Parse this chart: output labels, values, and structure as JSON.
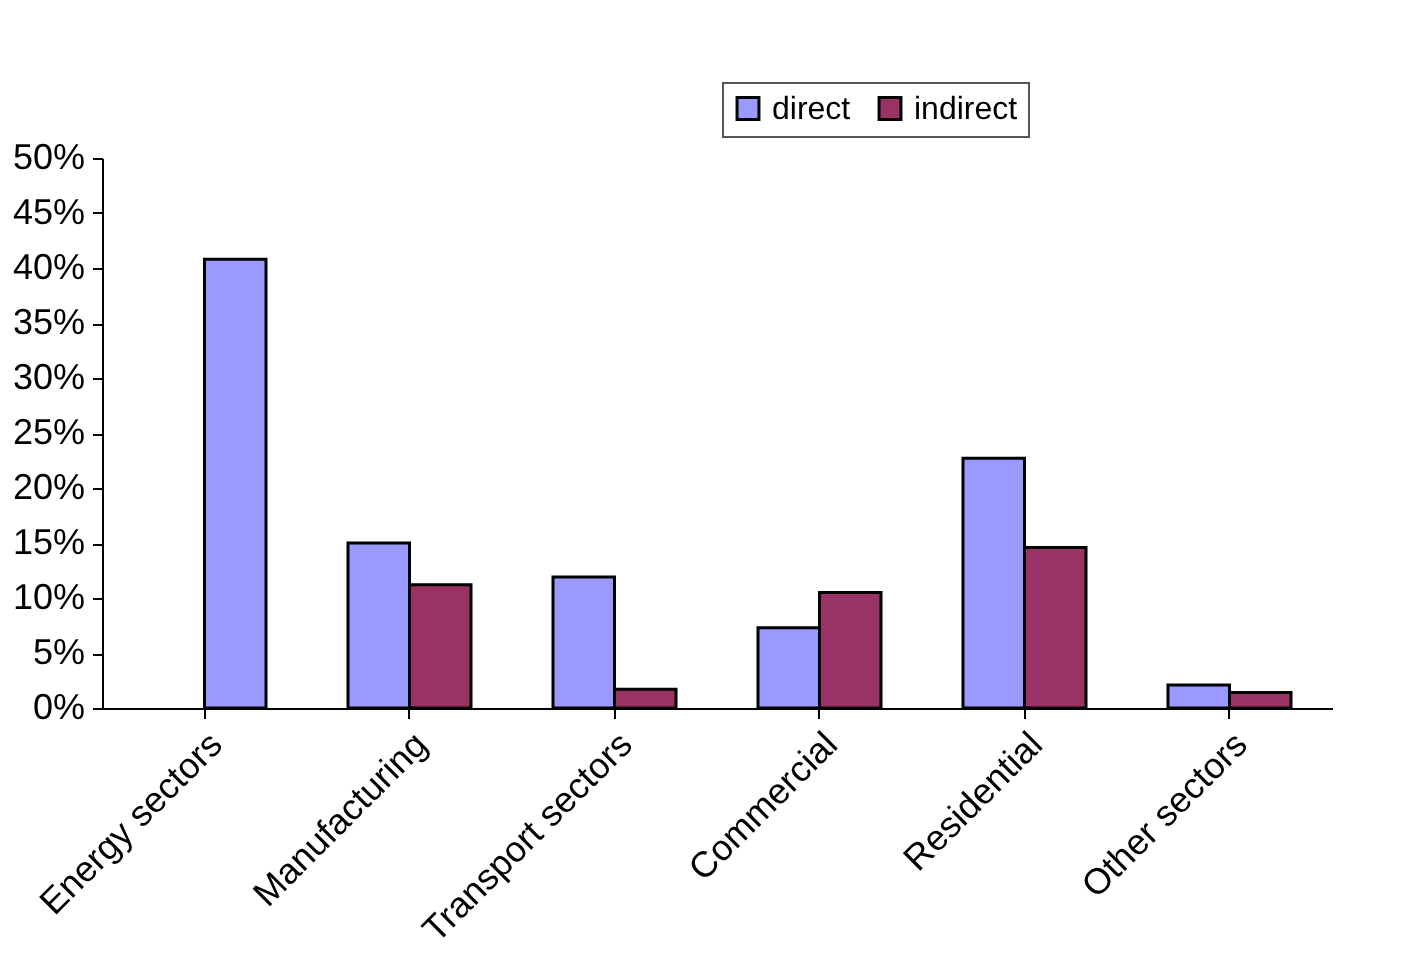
{
  "chart_data": {
    "type": "bar",
    "categories": [
      "Energy sectors",
      "Manufacturing",
      "Transport sectors",
      "Commercial",
      "Residential",
      "Other sectors"
    ],
    "series": [
      {
        "name": "direct",
        "color": "#9999ff",
        "values": [
          null,
          15.0,
          11.9,
          7.3,
          22.7,
          2.1
        ]
      },
      {
        "name": "indirect",
        "color": "#993366",
        "colors": [
          "#9999ff",
          "#993366",
          "#993366",
          "#993366",
          "#993366",
          "#993366"
        ],
        "values": [
          40.8,
          11.2,
          1.7,
          10.5,
          14.6,
          1.4
        ]
      }
    ],
    "ylim": [
      0,
      50
    ],
    "yticks": [
      {
        "value": 0,
        "label": "0%"
      },
      {
        "value": 5,
        "label": "5%"
      },
      {
        "value": 10,
        "label": "10%"
      },
      {
        "value": 15,
        "label": "15%"
      },
      {
        "value": 20,
        "label": "20%"
      },
      {
        "value": 25,
        "label": "25%"
      },
      {
        "value": 30,
        "label": "30%"
      },
      {
        "value": 35,
        "label": "35%"
      },
      {
        "value": 40,
        "label": "40%"
      },
      {
        "value": 45,
        "label": "45%"
      },
      {
        "value": 50,
        "label": "50%"
      }
    ],
    "grid": false,
    "legend": "top"
  }
}
